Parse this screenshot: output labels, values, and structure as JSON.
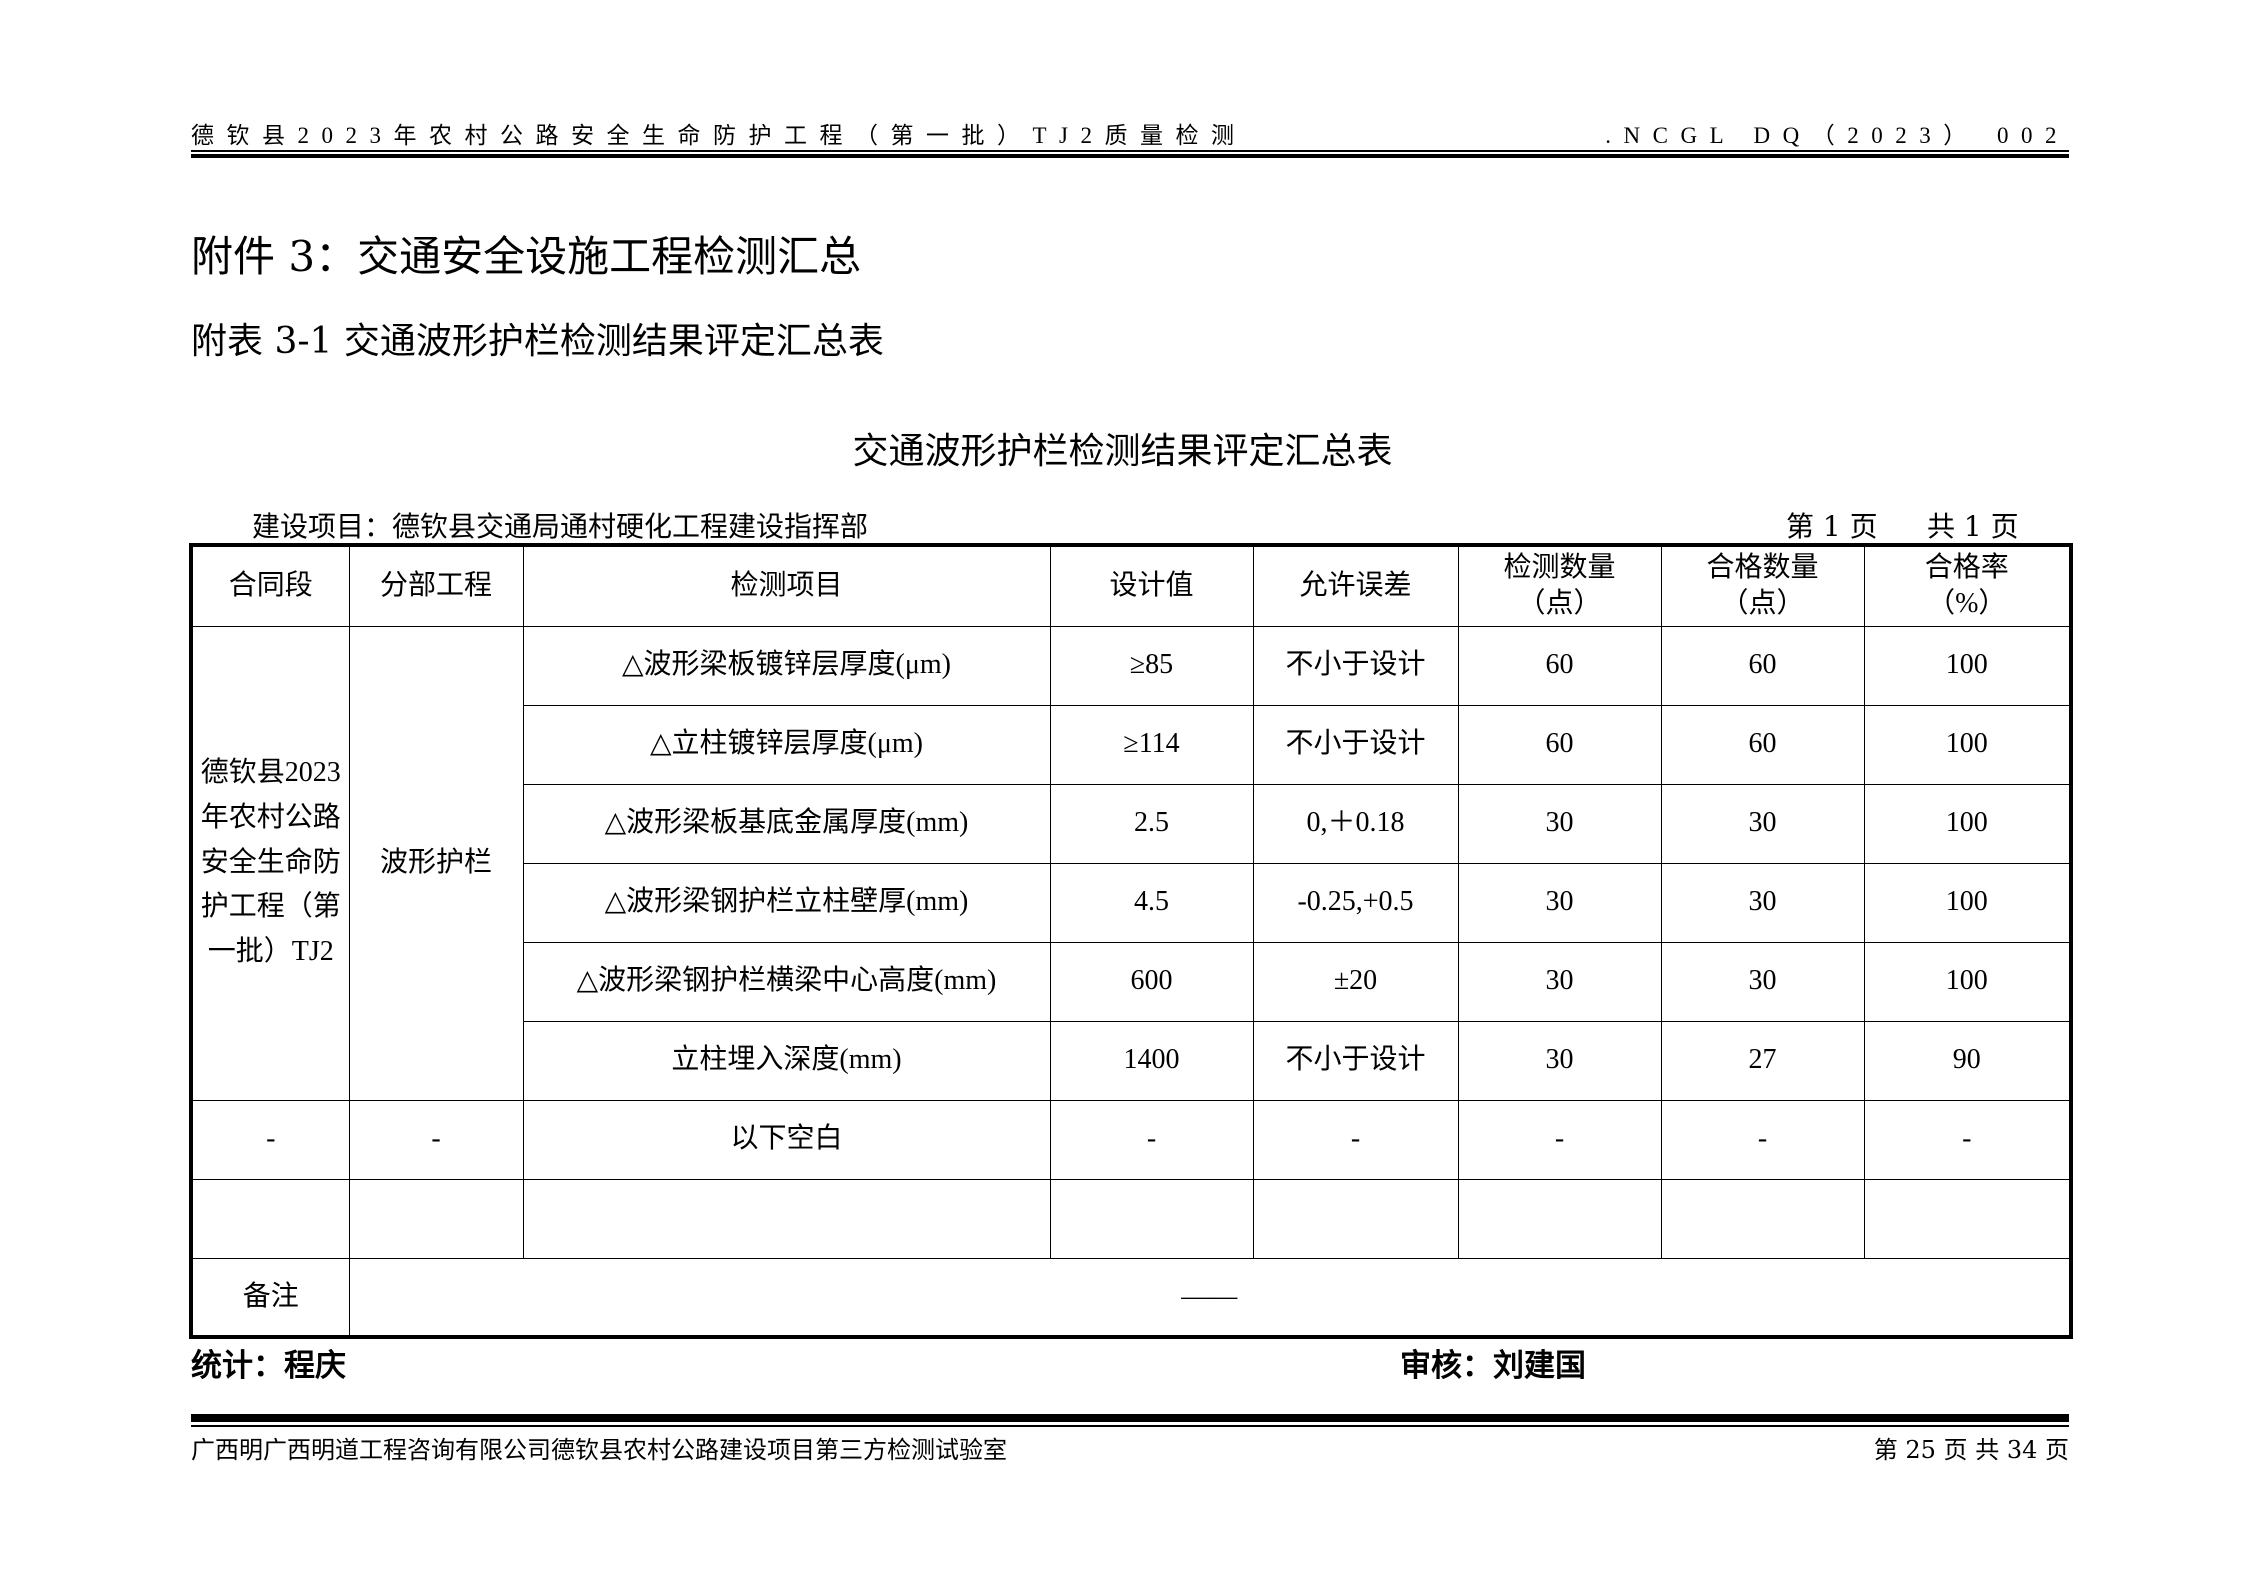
{
  "header": {
    "left": "德钦县2023年农村公路安全生命防护工程（第一批）TJ2质量检测",
    "right": ".NCGL DQ（2023） 002"
  },
  "title_main": "附件 3：交通安全设施工程检测汇总",
  "title_sub": "附表 3-1 交通波形护栏检测结果评定汇总表",
  "table_title": "交通波形护栏检测结果评定汇总表",
  "project": "建设项目：德钦县交通局通村硬化工程建设指挥部",
  "page_no": "第 1 页",
  "page_total": "共 1 页",
  "table": {
    "headers": [
      "合同段",
      "分部工程",
      "检测项目",
      "设计值",
      "允许误差",
      "检测数量（点）",
      "合格数量（点）",
      "合格率（%）"
    ],
    "contract": "德钦县2023年农村公路安全生命防护工程（第一批）TJ2",
    "part": "波形护栏",
    "rows": [
      [
        "△波形梁板镀锌层厚度(μm)",
        "≥85",
        "不小于设计",
        "60",
        "60",
        "100"
      ],
      [
        "△立柱镀锌层厚度(μm)",
        "≥114",
        "不小于设计",
        "60",
        "60",
        "100"
      ],
      [
        "△波形梁板基底金属厚度(mm)",
        "2.5",
        "0,＋0.18",
        "30",
        "30",
        "100"
      ],
      [
        "△波形梁钢护栏立柱壁厚(mm)",
        "4.5",
        "-0.25,+0.5",
        "30",
        "30",
        "100"
      ],
      [
        "△波形梁钢护栏横梁中心高度(mm)",
        "600",
        "±20",
        "30",
        "30",
        "100"
      ],
      [
        "立柱埋入深度(mm)",
        "1400",
        "不小于设计",
        "30",
        "27",
        "90"
      ]
    ],
    "blank_row": [
      "-",
      "-",
      "以下空白",
      "-",
      "-",
      "-",
      "-",
      "-"
    ],
    "remark_label": "备注",
    "remark_value": "——"
  },
  "stat": "统计：程庆",
  "review": "审核：刘建国",
  "footer": {
    "left": "广西明广西明道工程咨询有限公司德钦县农村公路建设项目第三方检测试验室",
    "right": "第 25 页 共 34 页"
  }
}
